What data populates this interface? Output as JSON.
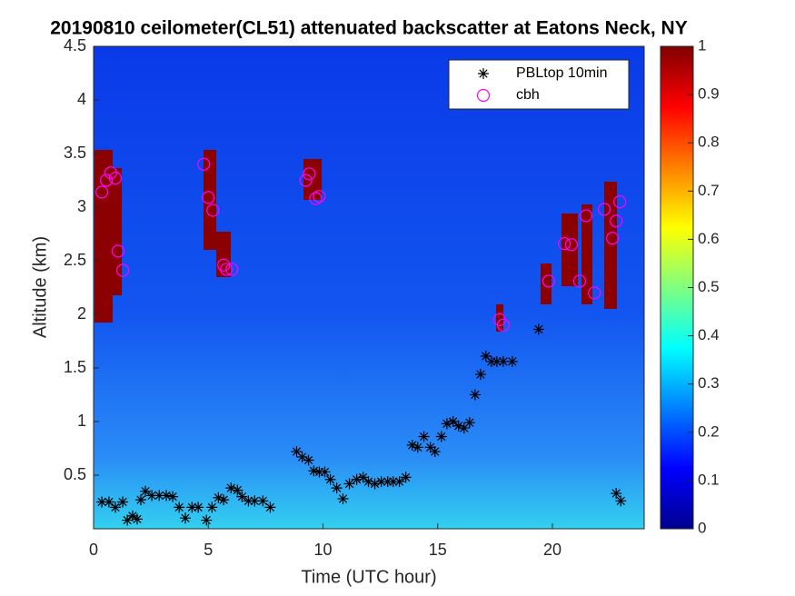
{
  "chart_data": {
    "type": "scatter",
    "title": "20190810 ceilometer(CL51) attenuated backscatter at Eatons Neck, NY",
    "x_label": "Time (UTC hour)",
    "y_label": "Altitude (km)",
    "xlim": [
      0,
      24
    ],
    "ylim": [
      0,
      4.5
    ],
    "xticks": [
      0,
      5,
      10,
      15,
      20
    ],
    "yticks": [
      0.5,
      1,
      1.5,
      2,
      2.5,
      3,
      3.5,
      4,
      4.5
    ],
    "colorbar": {
      "colormap": "jet",
      "clim": [
        0,
        1
      ],
      "ticks": [
        0,
        0.1,
        0.2,
        0.3,
        0.4,
        0.5,
        0.6,
        0.7,
        0.8,
        0.9,
        1
      ]
    },
    "legend_position": "upper right",
    "series": [
      {
        "name": "PBLtop 10min",
        "marker": "asterisk",
        "color": "#000000",
        "x": [
          0.36,
          0.67,
          0.95,
          1.27,
          1.47,
          1.7,
          1.9,
          2.06,
          2.26,
          2.54,
          2.86,
          3.17,
          3.45,
          3.73,
          4.0,
          4.29,
          4.56,
          4.92,
          5.16,
          5.44,
          5.67,
          5.99,
          6.27,
          6.47,
          6.75,
          7.02,
          7.38,
          7.7,
          8.85,
          9.09,
          9.37,
          9.6,
          9.84,
          10.08,
          10.32,
          10.6,
          10.87,
          11.15,
          11.47,
          11.75,
          11.98,
          12.26,
          12.54,
          12.82,
          13.06,
          13.33,
          13.61,
          13.89,
          14.13,
          14.4,
          14.68,
          14.88,
          15.16,
          15.4,
          15.67,
          15.91,
          16.15,
          16.39,
          16.63,
          16.87,
          17.1,
          17.34,
          17.58,
          17.86,
          18.25,
          19.4,
          22.78,
          22.98
        ],
        "values": [
          0.25,
          0.25,
          0.2,
          0.25,
          0.08,
          0.12,
          0.09,
          0.27,
          0.35,
          0.31,
          0.31,
          0.31,
          0.3,
          0.2,
          0.1,
          0.2,
          0.2,
          0.08,
          0.2,
          0.29,
          0.27,
          0.38,
          0.36,
          0.3,
          0.26,
          0.26,
          0.26,
          0.2,
          0.72,
          0.67,
          0.64,
          0.54,
          0.53,
          0.53,
          0.46,
          0.38,
          0.28,
          0.42,
          0.46,
          0.48,
          0.44,
          0.42,
          0.44,
          0.44,
          0.44,
          0.44,
          0.48,
          0.78,
          0.76,
          0.86,
          0.76,
          0.72,
          0.86,
          0.98,
          1.0,
          0.96,
          0.94,
          0.99,
          1.25,
          1.44,
          1.61,
          1.56,
          1.56,
          1.56,
          1.56,
          1.86,
          0.33,
          0.26
        ]
      },
      {
        "name": "cbh",
        "marker": "circle",
        "color": "#ff00ff",
        "x": [
          0.36,
          0.56,
          0.75,
          0.95,
          1.07,
          1.27,
          4.8,
          5.0,
          5.2,
          5.67,
          5.79,
          6.03,
          9.25,
          9.4,
          9.68,
          9.84,
          17.7,
          17.86,
          19.84,
          20.52,
          20.83,
          21.19,
          21.47,
          21.83,
          22.26,
          22.62,
          22.78,
          22.94
        ],
        "values": [
          3.14,
          3.25,
          3.32,
          3.27,
          2.59,
          2.41,
          3.4,
          3.09,
          2.97,
          2.46,
          2.42,
          2.42,
          3.25,
          3.31,
          3.08,
          3.1,
          1.95,
          1.9,
          2.31,
          2.66,
          2.65,
          2.31,
          2.92,
          2.2,
          2.98,
          2.71,
          2.87,
          3.05
        ]
      }
    ]
  }
}
